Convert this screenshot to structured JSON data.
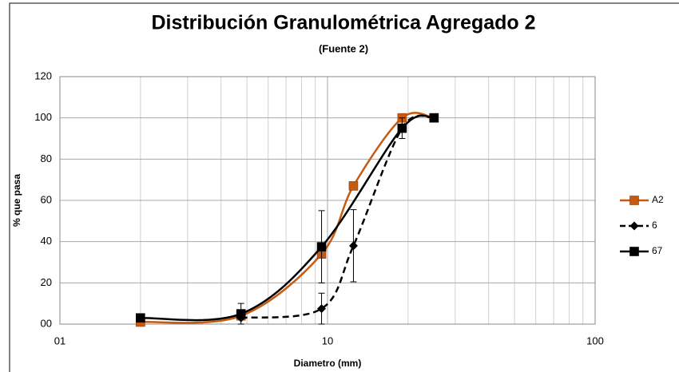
{
  "chart_data": {
    "type": "line",
    "title": "Distribución Granulométrica Agregado 2",
    "subtitle": "(Fuente 2)",
    "x_label": "Diametro (mm)",
    "y_label": "% que pasa",
    "log_x": true,
    "grid": true,
    "legend": "right",
    "xlim": [
      1,
      100
    ],
    "xticks": [
      {
        "value": 1,
        "label": "01"
      },
      10,
      100
    ],
    "ylim": [
      0,
      120
    ],
    "yticks": [
      {
        "value": 0,
        "label": "00"
      },
      20,
      40,
      60,
      80,
      100,
      120
    ],
    "series": [
      {
        "name": "A2",
        "color": "#c55a11",
        "marker": "square",
        "dashed": false,
        "x": [
          2,
          4.75,
          9.5,
          12.5,
          19,
          25
        ],
        "values": [
          1,
          4,
          34,
          67,
          100,
          100
        ]
      },
      {
        "name": "6",
        "color": "#000000",
        "marker": "diamond",
        "dashed": true,
        "x": [
          4.75,
          9.5,
          12.5,
          19,
          25
        ],
        "values": [
          3,
          7.5,
          38,
          95,
          100
        ],
        "errors": [
          null,
          7.5,
          17.5,
          null,
          null
        ]
      },
      {
        "name": "67",
        "color": "#000000",
        "marker": "square",
        "dashed": false,
        "x": [
          2,
          4.75,
          9.5,
          19,
          25
        ],
        "values": [
          3,
          5,
          37.5,
          95,
          100
        ],
        "errors": [
          null,
          5,
          17.5,
          5,
          null
        ]
      }
    ]
  }
}
